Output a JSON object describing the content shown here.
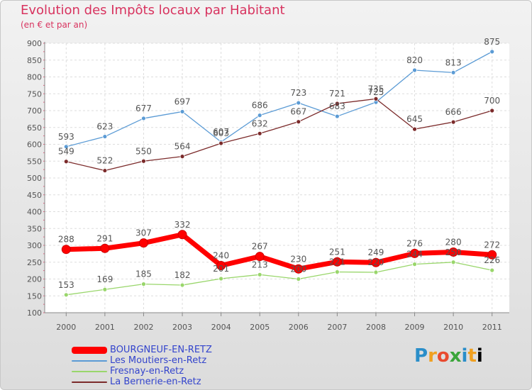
{
  "title": "Evolution des Impôts locaux par Habitant",
  "subtitle": "(en € et par an)",
  "logo_text": "Proxiti",
  "chart_data": {
    "type": "line",
    "title": "Evolution des Impôts locaux par Habitant",
    "subtitle": "(en € et par an)",
    "xlabel": "",
    "ylabel": "",
    "ylim": [
      100,
      900
    ],
    "grid": true,
    "categories": [
      "2000",
      "2001",
      "2002",
      "2003",
      "2004",
      "2005",
      "2006",
      "2007",
      "2008",
      "2009",
      "2010",
      "2011"
    ],
    "yticks": [
      100,
      150,
      200,
      250,
      300,
      350,
      400,
      450,
      500,
      550,
      600,
      650,
      700,
      750,
      800,
      850,
      900
    ],
    "series": [
      {
        "name": "BOURGNEUF-EN-RETZ",
        "color": "#ff0000",
        "values": [
          288,
          291,
          307,
          332,
          240,
          267,
          230,
          251,
          249,
          276,
          280,
          272
        ]
      },
      {
        "name": "Les Moutiers-en-Retz",
        "color": "#5b9bd5",
        "values": [
          593,
          623,
          677,
          697,
          607,
          686,
          723,
          683,
          725,
          820,
          813,
          875
        ]
      },
      {
        "name": "Fresnay-en-Retz",
        "color": "#99d66b",
        "values": [
          153,
          169,
          185,
          182,
          201,
          213,
          200,
          221,
          220,
          244,
          250,
          226
        ]
      },
      {
        "name": "La Bernerie-en-Retz",
        "color": "#7b2a2a",
        "values": [
          549,
          522,
          550,
          564,
          603,
          632,
          667,
          721,
          735,
          645,
          666,
          700
        ]
      }
    ]
  }
}
